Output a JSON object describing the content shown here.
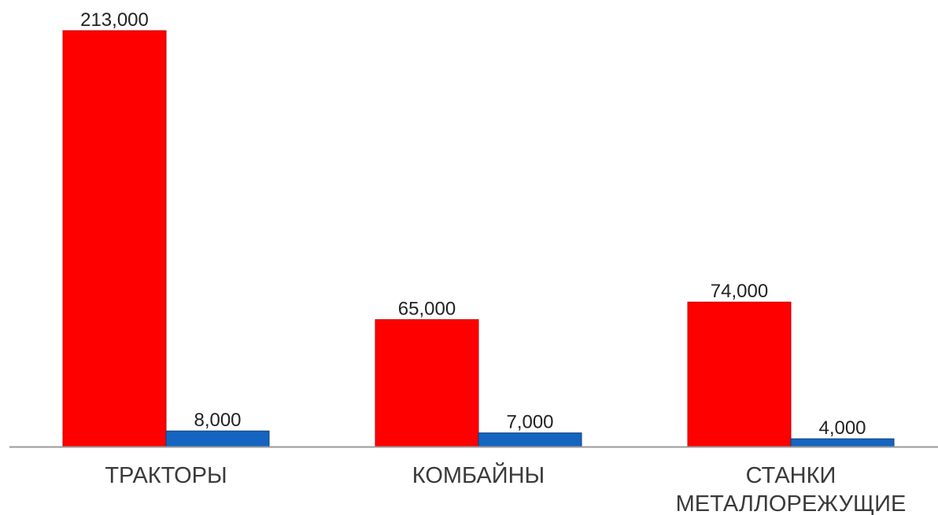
{
  "chart_data": {
    "type": "bar",
    "categories": [
      [
        "ТРАКТОРЫ"
      ],
      [
        "КОМБАЙНЫ"
      ],
      [
        "СТАНКИ",
        "МЕТАЛЛОРЕЖУЩИЕ"
      ]
    ],
    "series": [
      {
        "values": [
          213000,
          65000,
          74000
        ],
        "labels": [
          "213,000",
          "65,000",
          "74,000"
        ],
        "color": "#ff0000",
        "edge": "#c00000"
      },
      {
        "values": [
          8000,
          7000,
          4000
        ],
        "labels": [
          "8,000",
          "7,000",
          "4,000"
        ],
        "color": "#1565c0",
        "edge": "#0d3f80"
      }
    ],
    "ylim": [
      0,
      213000
    ],
    "axis_color": "#9a9a9a",
    "grid": false,
    "legend": "none"
  }
}
